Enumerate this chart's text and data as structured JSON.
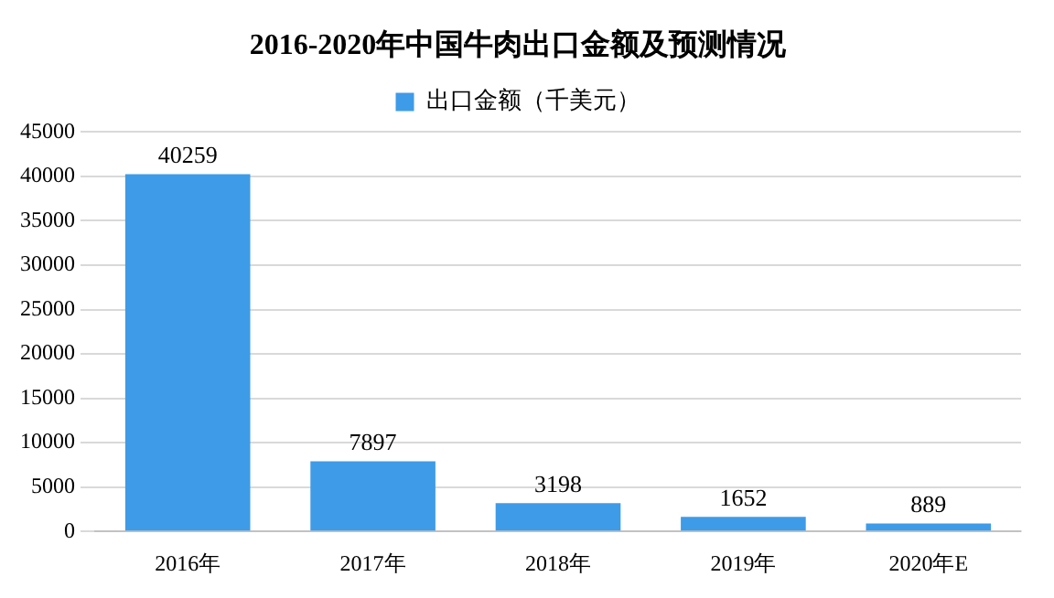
{
  "chart_data": {
    "type": "bar",
    "title": "2016-2020年中国牛肉出口金额及预测情况",
    "categories": [
      "2016年",
      "2017年",
      "2018年",
      "2019年",
      "2020年E"
    ],
    "series": [
      {
        "name": "出口金额（千美元）",
        "color": "#3e9be8",
        "values": [
          40259,
          7897,
          3198,
          1652,
          889
        ]
      }
    ],
    "ylim": [
      0,
      45000
    ],
    "yticks": [
      0,
      5000,
      10000,
      15000,
      20000,
      25000,
      30000,
      35000,
      40000,
      45000
    ],
    "grid": "y",
    "legend": "top",
    "data_labels": true
  }
}
